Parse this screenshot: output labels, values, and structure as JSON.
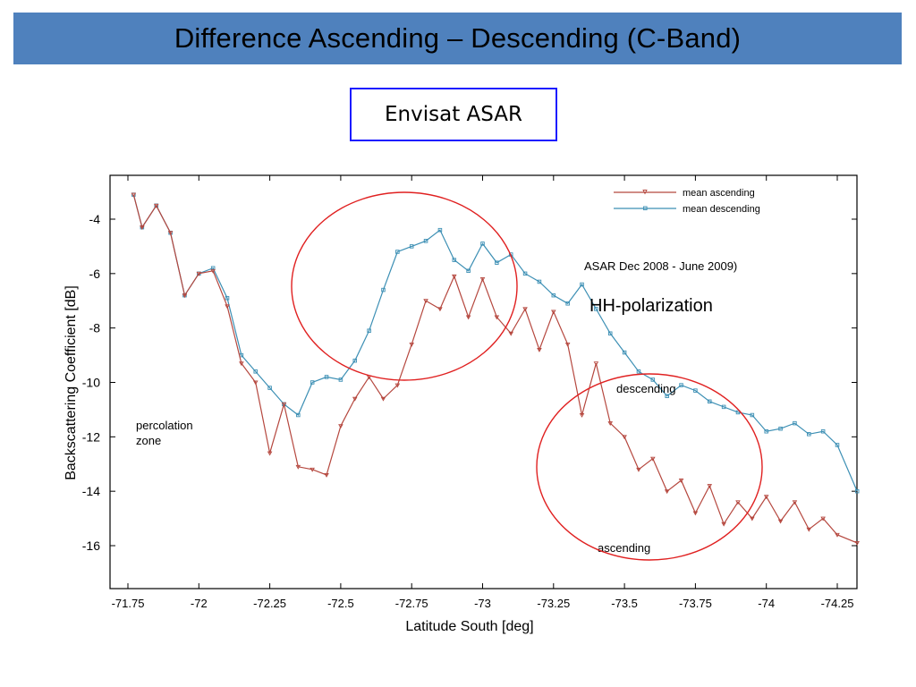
{
  "slide": {
    "title": "Difference Ascending – Descending (C-Band)",
    "subtitle": "Envisat ASAR"
  },
  "colors": {
    "title_bar": "#4f81bd",
    "subtitle_border": "#1a1aff",
    "ascending": "#b5473e",
    "descending": "#3c8fb4",
    "highlight_ellipse": "#e02020"
  },
  "chart_data": {
    "type": "line",
    "xlabel": "Latitude South [deg]",
    "ylabel": "Backscattering Coefficient [dB]",
    "xlim": [
      -71.7,
      -74.3
    ],
    "ylim": [
      -17.5,
      -2.5
    ],
    "xticks": [
      -71.75,
      -72,
      -72.25,
      -72.5,
      -72.75,
      -73,
      -73.25,
      -73.5,
      -73.75,
      -74,
      -74.25
    ],
    "yticks": [
      -4,
      -6,
      -8,
      -10,
      -12,
      -14,
      -16
    ],
    "legend": "top-right",
    "annotations": [
      "ASAR Dec 2008 - June 2009)",
      "HH-polarization",
      "percolation zone",
      "descending",
      "ascending"
    ],
    "series": [
      {
        "name": "mean ascending",
        "x": [
          -71.77,
          -71.8,
          -71.85,
          -71.9,
          -71.95,
          -72.0,
          -72.05,
          -72.1,
          -72.15,
          -72.2,
          -72.25,
          -72.3,
          -72.35,
          -72.4,
          -72.45,
          -72.5,
          -72.55,
          -72.6,
          -72.65,
          -72.7,
          -72.75,
          -72.8,
          -72.85,
          -72.9,
          -72.95,
          -73.0,
          -73.05,
          -73.1,
          -73.15,
          -73.2,
          -73.25,
          -73.3,
          -73.35,
          -73.4,
          -73.45,
          -73.5,
          -73.55,
          -73.6,
          -73.65,
          -73.7,
          -73.75,
          -73.8,
          -73.85,
          -73.9,
          -73.95,
          -74.0,
          -74.05,
          -74.1,
          -74.15,
          -74.2,
          -74.25,
          -74.32
        ],
        "values": [
          -3.1,
          -4.3,
          -3.5,
          -4.5,
          -6.8,
          -6.0,
          -5.9,
          -7.2,
          -9.3,
          -10.0,
          -12.6,
          -10.8,
          -13.1,
          -13.2,
          -13.4,
          -11.6,
          -10.6,
          -9.8,
          -10.6,
          -10.1,
          -8.6,
          -7.0,
          -7.3,
          -6.1,
          -7.6,
          -6.2,
          -7.6,
          -8.2,
          -7.3,
          -8.8,
          -7.4,
          -8.6,
          -11.2,
          -9.3,
          -11.5,
          -12.0,
          -13.2,
          -12.8,
          -14.0,
          -13.6,
          -14.8,
          -13.8,
          -15.2,
          -14.4,
          -15.0,
          -14.2,
          -15.1,
          -14.4,
          -15.4,
          -15.0,
          -15.6,
          -15.9
        ]
      },
      {
        "name": "mean descending",
        "x": [
          -71.77,
          -71.8,
          -71.85,
          -71.9,
          -71.95,
          -72.0,
          -72.05,
          -72.1,
          -72.15,
          -72.2,
          -72.25,
          -72.3,
          -72.35,
          -72.4,
          -72.45,
          -72.5,
          -72.55,
          -72.6,
          -72.65,
          -72.7,
          -72.75,
          -72.8,
          -72.85,
          -72.9,
          -72.95,
          -73.0,
          -73.05,
          -73.1,
          -73.15,
          -73.2,
          -73.25,
          -73.3,
          -73.35,
          -73.4,
          -73.45,
          -73.5,
          -73.55,
          -73.6,
          -73.65,
          -73.7,
          -73.75,
          -73.8,
          -73.85,
          -73.9,
          -73.95,
          -74.0,
          -74.05,
          -74.1,
          -74.15,
          -74.2,
          -74.25,
          -74.32
        ],
        "values": [
          -3.1,
          -4.3,
          -3.5,
          -4.5,
          -6.8,
          -6.0,
          -5.8,
          -6.9,
          -9.0,
          -9.6,
          -10.2,
          -10.8,
          -11.2,
          -10.0,
          -9.8,
          -9.9,
          -9.2,
          -8.1,
          -6.6,
          -5.2,
          -5.0,
          -4.8,
          -4.4,
          -5.5,
          -5.9,
          -4.9,
          -5.6,
          -5.3,
          -6.0,
          -6.3,
          -6.8,
          -7.1,
          -6.4,
          -7.3,
          -8.2,
          -8.9,
          -9.6,
          -9.9,
          -10.5,
          -10.1,
          -10.3,
          -10.7,
          -10.9,
          -11.1,
          -11.2,
          -11.8,
          -11.7,
          -11.5,
          -11.9,
          -11.8,
          -12.3,
          -14.0
        ]
      }
    ]
  }
}
